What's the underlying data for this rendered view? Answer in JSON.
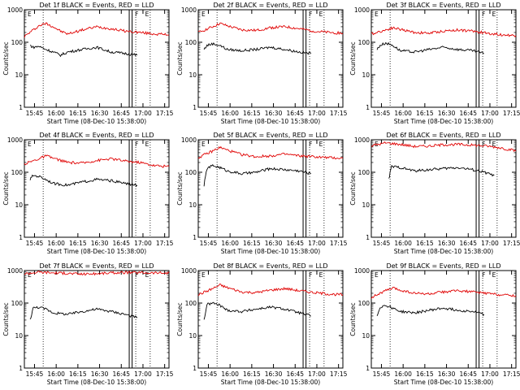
{
  "figure": {
    "background": "#ffffff",
    "event_color": "#000000",
    "lld_color": "#e00000",
    "ylabel": "Counts/sec",
    "xlabel": "Start Time (08-Dec-10 15:38:00)",
    "x_ticks": [
      "15:45",
      "16:00",
      "16:15",
      "16:30",
      "16:45",
      "17:00",
      "17:15"
    ],
    "y_ticks": [
      "1",
      "10",
      "100",
      "1000"
    ],
    "markers": {
      "e_label": "E",
      "f_label": "F"
    }
  },
  "chart_data": [
    {
      "type": "line",
      "title": "Det 1f BLACK = Events, RED = LLD",
      "y_scale": "log",
      "ylim": [
        1,
        1000
      ],
      "x_range_min": [
        0,
        100
      ],
      "series": [
        {
          "name": "LLD",
          "color": "#e00000",
          "x": [
            0,
            10,
            15,
            20,
            25,
            30,
            40,
            50,
            60,
            70,
            80,
            90,
            100
          ],
          "y": [
            150,
            320,
            380,
            300,
            220,
            180,
            240,
            300,
            260,
            220,
            200,
            180,
            170
          ]
        },
        {
          "name": "Events",
          "color": "#000000",
          "x": [
            4,
            6,
            10,
            15,
            20,
            25,
            30,
            40,
            50,
            60,
            70,
            78
          ],
          "y": [
            80,
            70,
            75,
            60,
            50,
            40,
            50,
            60,
            70,
            50,
            45,
            40
          ]
        }
      ]
    },
    {
      "type": "line",
      "title": "Det 2f BLACK = Events, RED = LLD",
      "y_scale": "log",
      "ylim": [
        1,
        1000
      ],
      "series": [
        {
          "name": "LLD",
          "color": "#e00000",
          "x": [
            0,
            10,
            15,
            20,
            30,
            40,
            50,
            60,
            70,
            80,
            90,
            100
          ],
          "y": [
            200,
            300,
            380,
            320,
            240,
            230,
            280,
            300,
            260,
            220,
            200,
            190
          ]
        },
        {
          "name": "Events",
          "color": "#000000",
          "x": [
            4,
            6,
            10,
            15,
            20,
            30,
            40,
            50,
            60,
            70,
            78
          ],
          "y": [
            60,
            80,
            90,
            80,
            60,
            55,
            60,
            70,
            60,
            50,
            45
          ]
        }
      ]
    },
    {
      "type": "line",
      "title": "Det 3f BLACK = Events, RED = LLD",
      "y_scale": "log",
      "ylim": [
        1,
        1000
      ],
      "series": [
        {
          "name": "LLD",
          "color": "#e00000",
          "x": [
            0,
            10,
            15,
            20,
            30,
            40,
            50,
            60,
            70,
            80,
            90,
            100
          ],
          "y": [
            180,
            240,
            280,
            250,
            200,
            190,
            220,
            240,
            220,
            190,
            170,
            160
          ]
        },
        {
          "name": "Events",
          "color": "#000000",
          "x": [
            4,
            6,
            10,
            15,
            20,
            30,
            40,
            50,
            60,
            70,
            78
          ],
          "y": [
            60,
            80,
            95,
            80,
            55,
            50,
            60,
            70,
            60,
            55,
            45
          ]
        }
      ]
    },
    {
      "type": "line",
      "title": "Det 4f BLACK = Events, RED = LLD",
      "y_scale": "log",
      "ylim": [
        1,
        1000
      ],
      "series": [
        {
          "name": "LLD",
          "color": "#e00000",
          "x": [
            0,
            10,
            15,
            20,
            30,
            40,
            50,
            60,
            70,
            80,
            90,
            100
          ],
          "y": [
            180,
            260,
            320,
            270,
            200,
            190,
            230,
            260,
            220,
            200,
            160,
            150
          ]
        },
        {
          "name": "Events",
          "color": "#000000",
          "x": [
            4,
            6,
            10,
            15,
            20,
            30,
            40,
            50,
            60,
            70,
            78
          ],
          "y": [
            60,
            80,
            75,
            60,
            45,
            40,
            50,
            60,
            55,
            45,
            40
          ]
        }
      ]
    },
    {
      "type": "line",
      "title": "Det 5f BLACK = Events, RED = LLD",
      "y_scale": "log",
      "ylim": [
        1,
        1000
      ],
      "series": [
        {
          "name": "LLD",
          "color": "#e00000",
          "x": [
            0,
            10,
            15,
            20,
            30,
            40,
            50,
            60,
            70,
            80,
            90,
            100
          ],
          "y": [
            280,
            450,
            580,
            480,
            350,
            300,
            320,
            360,
            320,
            300,
            280,
            270
          ]
        },
        {
          "name": "Events",
          "color": "#000000",
          "x": [
            4,
            6,
            10,
            15,
            20,
            30,
            40,
            50,
            60,
            70,
            78
          ],
          "y": [
            40,
            130,
            160,
            140,
            110,
            90,
            100,
            130,
            120,
            110,
            90
          ]
        }
      ]
    },
    {
      "type": "line",
      "title": "Det 6f BLACK = Events, RED = LLD",
      "y_scale": "log",
      "ylim": [
        1,
        1000
      ],
      "series": [
        {
          "name": "LLD",
          "color": "#e00000",
          "x": [
            0,
            10,
            20,
            30,
            40,
            50,
            60,
            70,
            80,
            90,
            100
          ],
          "y": [
            650,
            800,
            720,
            620,
            640,
            700,
            720,
            680,
            640,
            560,
            450
          ]
        },
        {
          "name": "Events",
          "color": "#000000",
          "x": [
            12,
            14,
            20,
            30,
            40,
            50,
            60,
            70,
            78,
            85
          ],
          "y": [
            60,
            150,
            140,
            110,
            120,
            130,
            140,
            120,
            100,
            80
          ]
        }
      ]
    },
    {
      "type": "line",
      "title": "Det 7f BLACK = Events, RED = LLD",
      "y_scale": "log",
      "ylim": [
        1,
        1000
      ],
      "series": [
        {
          "name": "LLD",
          "color": "#e00000",
          "x": [
            0,
            10,
            20,
            30,
            40,
            50,
            60,
            70,
            80,
            90,
            100
          ],
          "y": [
            800,
            900,
            850,
            820,
            780,
            800,
            850,
            870,
            860,
            850,
            840
          ]
        },
        {
          "name": "Events",
          "color": "#000000",
          "x": [
            4,
            6,
            10,
            15,
            20,
            30,
            40,
            50,
            60,
            70,
            78
          ],
          "y": [
            30,
            70,
            75,
            65,
            50,
            45,
            55,
            65,
            55,
            45,
            35
          ]
        }
      ]
    },
    {
      "type": "line",
      "title": "Det 8f BLACK = Events, RED = LLD",
      "y_scale": "log",
      "ylim": [
        1,
        1000
      ],
      "series": [
        {
          "name": "LLD",
          "color": "#e00000",
          "x": [
            0,
            10,
            15,
            20,
            30,
            40,
            50,
            60,
            70,
            80,
            90,
            100
          ],
          "y": [
            180,
            280,
            360,
            300,
            220,
            210,
            250,
            280,
            240,
            210,
            190,
            180
          ]
        },
        {
          "name": "Events",
          "color": "#000000",
          "x": [
            4,
            6,
            10,
            15,
            20,
            30,
            40,
            50,
            60,
            70,
            78
          ],
          "y": [
            30,
            90,
            100,
            85,
            60,
            55,
            65,
            75,
            65,
            50,
            40
          ]
        }
      ]
    },
    {
      "type": "line",
      "title": "Det 9f BLACK = Events, RED = LLD",
      "y_scale": "log",
      "ylim": [
        1,
        1000
      ],
      "series": [
        {
          "name": "LLD",
          "color": "#e00000",
          "x": [
            0,
            10,
            15,
            20,
            30,
            40,
            50,
            60,
            70,
            80,
            90,
            100
          ],
          "y": [
            150,
            240,
            290,
            250,
            200,
            190,
            220,
            240,
            220,
            200,
            180,
            170
          ]
        },
        {
          "name": "Events",
          "color": "#000000",
          "x": [
            4,
            6,
            10,
            15,
            20,
            30,
            40,
            50,
            60,
            70,
            78
          ],
          "y": [
            40,
            75,
            85,
            70,
            55,
            50,
            60,
            70,
            60,
            55,
            45
          ]
        }
      ]
    }
  ]
}
